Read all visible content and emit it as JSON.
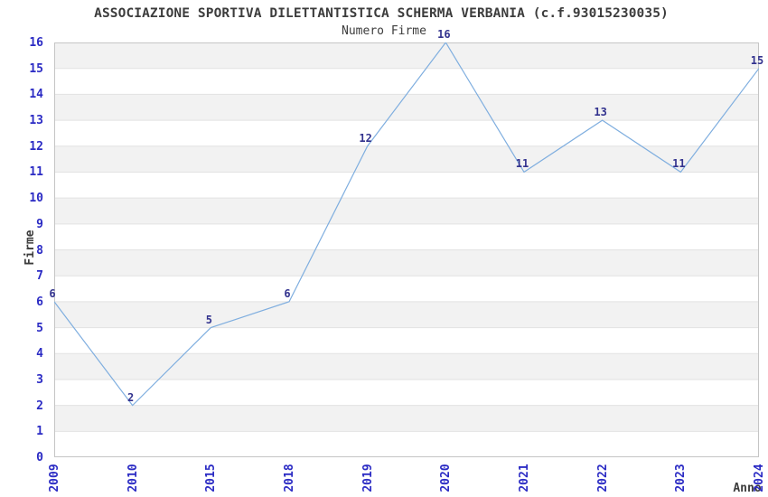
{
  "header": {
    "title": "ASSOCIAZIONE SPORTIVA DILETTANTISTICA SCHERMA VERBANIA (c.f.93015230035)",
    "subtitle": "Numero Firme"
  },
  "chart_data": {
    "type": "line",
    "title": "ASSOCIAZIONE SPORTIVA DILETTANTISTICA SCHERMA VERBANIA (c.f.93015230035)",
    "subtitle": "Numero Firme",
    "xlabel": "Anno",
    "ylabel": "Firme",
    "categories": [
      "2009",
      "2010",
      "2015",
      "2018",
      "2019",
      "2020",
      "2021",
      "2022",
      "2023",
      "2024"
    ],
    "values": [
      6,
      2,
      5,
      6,
      12,
      16,
      11,
      13,
      11,
      15
    ],
    "ylim": [
      0,
      16
    ],
    "ytick_step": 1,
    "grid": "alternating horizontal unit bands with light gridlines at every integer",
    "legend": "none",
    "point_value_labels_shown": true,
    "colors": {
      "line": "#7FAEDF",
      "tick_labels": "#2B2BC4",
      "value_labels": "#32328E",
      "band": "#F2F2F2",
      "gridline": "#E2E2E2",
      "plot_border": "#C5C5C5",
      "text": "#3C3C3C",
      "background": "#FFFFFF"
    }
  }
}
